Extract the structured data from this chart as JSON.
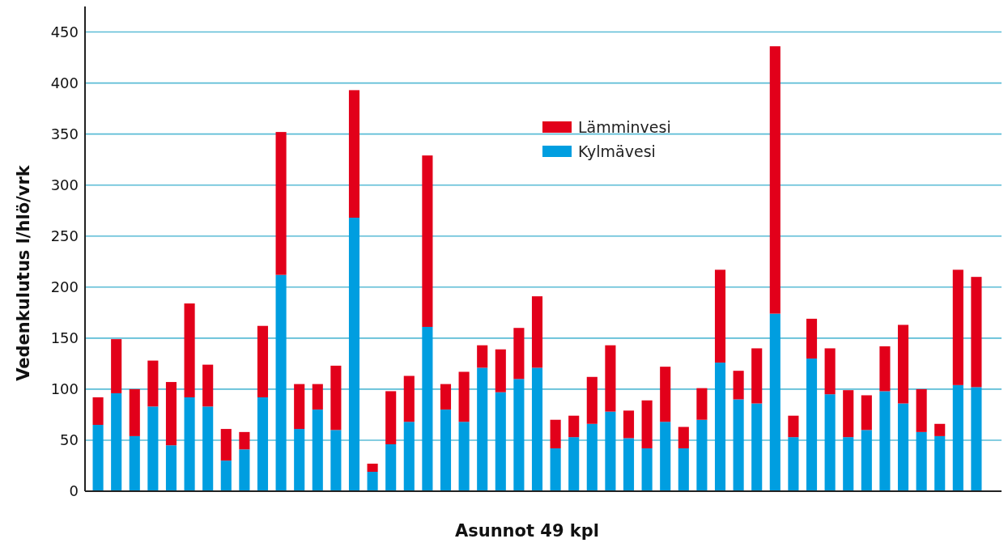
{
  "chart_data": {
    "type": "bar",
    "stacked": true,
    "xlabel": "Asunnot 49 kpl",
    "ylabel": "Vedenkulutus l/hlö/vrk",
    "categories": [
      null,
      null,
      null,
      null,
      null,
      null,
      null,
      null,
      null,
      null,
      null,
      null,
      null,
      null,
      null,
      null,
      null,
      null,
      null,
      null,
      null,
      null,
      null,
      null,
      null,
      null,
      null,
      null,
      null,
      null,
      null,
      null,
      null,
      null,
      null,
      null,
      null,
      null,
      null,
      null,
      null,
      null,
      null,
      null,
      null,
      null,
      null,
      null,
      null
    ],
    "series": [
      {
        "name": "Kylmävesi",
        "color": "#009ee0",
        "values": [
          65,
          96,
          54,
          83,
          45,
          92,
          83,
          30,
          41,
          92,
          212,
          61,
          80,
          60,
          268,
          19,
          46,
          68,
          161,
          80,
          68,
          121,
          97,
          110,
          121,
          42,
          53,
          66,
          78,
          52,
          42,
          68,
          42,
          70,
          126,
          90,
          86,
          174,
          53,
          130,
          95,
          53,
          60,
          98,
          86,
          58,
          54,
          104,
          102
        ]
      },
      {
        "name": "Lämminvesi",
        "color": "#e2001a",
        "values": [
          27,
          53,
          46,
          45,
          62,
          92,
          41,
          31,
          17,
          70,
          140,
          44,
          25,
          63,
          125,
          8,
          52,
          45,
          168,
          25,
          49,
          22,
          42,
          50,
          70,
          28,
          21,
          46,
          65,
          27,
          47,
          54,
          21,
          31,
          91,
          28,
          54,
          262,
          21,
          39,
          45,
          46,
          34,
          44,
          77,
          42,
          12,
          113,
          108
        ]
      }
    ],
    "ylim": [
      0,
      475
    ],
    "yticks": [
      0,
      50,
      100,
      150,
      200,
      250,
      300,
      350,
      400,
      450
    ],
    "grid": "y",
    "legend": "top",
    "tick_labels": "y"
  }
}
